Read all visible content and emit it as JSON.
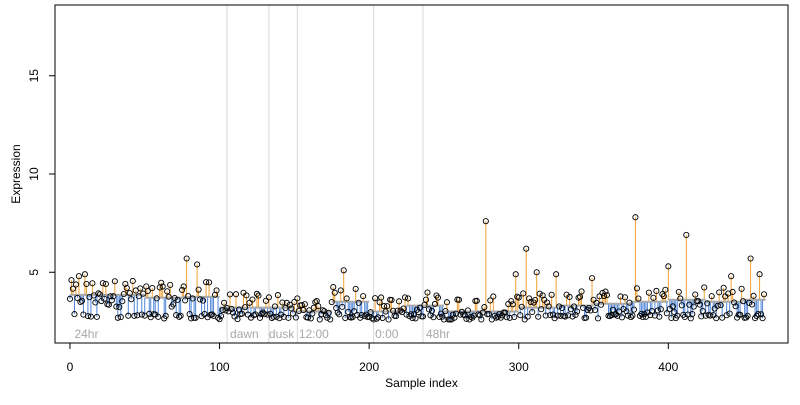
{
  "chart_data": {
    "type": "scatter",
    "xlabel": "Sample index",
    "ylabel": "Expression",
    "xlim": [
      -10,
      480
    ],
    "ylim": [
      1.4,
      18.6
    ],
    "x_ticks": [
      0,
      100,
      200,
      300,
      400
    ],
    "y_ticks": [
      5,
      10,
      15
    ],
    "grid": false,
    "colors": {
      "above_baseline": "#f0a030",
      "below_baseline": "#4f86d8",
      "baseline": "#a8a8a8",
      "separator": "#d8d8d8",
      "annotation": "#a8a8a8",
      "point_stroke": "#000000"
    },
    "separators": [
      105,
      133,
      152,
      203,
      236
    ],
    "region_labels": [
      {
        "x": 3,
        "text": "24hr"
      },
      {
        "x": 107,
        "text": "dawn"
      },
      {
        "x": 133,
        "text": "dusk"
      },
      {
        "x": 153,
        "text": "12:00"
      },
      {
        "x": 204,
        "text": "0:00"
      },
      {
        "x": 238,
        "text": "48hr"
      }
    ],
    "baseline_segments": [
      {
        "x0": 0,
        "x1": 50,
        "y": 3.85
      },
      {
        "x0": 50,
        "x1": 75,
        "y": 3.7
      },
      {
        "x0": 75,
        "x1": 100,
        "y": 3.75
      },
      {
        "x0": 100,
        "x1": 150,
        "y": 3.2
      },
      {
        "x0": 150,
        "x1": 175,
        "y": 3.0
      },
      {
        "x0": 175,
        "x1": 200,
        "y": 3.5
      },
      {
        "x0": 200,
        "x1": 225,
        "y": 3.0
      },
      {
        "x0": 225,
        "x1": 250,
        "y": 3.3
      },
      {
        "x0": 250,
        "x1": 300,
        "y": 3.0
      },
      {
        "x0": 300,
        "x1": 325,
        "y": 3.2
      },
      {
        "x0": 325,
        "x1": 350,
        "y": 3.3
      },
      {
        "x0": 350,
        "x1": 375,
        "y": 3.4
      },
      {
        "x0": 375,
        "x1": 400,
        "y": 3.5
      },
      {
        "x0": 400,
        "x1": 425,
        "y": 3.6
      },
      {
        "x0": 425,
        "x1": 450,
        "y": 3.5
      },
      {
        "x0": 450,
        "x1": 465,
        "y": 3.6
      }
    ],
    "highlight_points": [
      {
        "x": 6,
        "y": 4.8
      },
      {
        "x": 10,
        "y": 4.9
      },
      {
        "x": 78,
        "y": 5.7
      },
      {
        "x": 85,
        "y": 5.4
      },
      {
        "x": 183,
        "y": 5.1
      },
      {
        "x": 278,
        "y": 7.6
      },
      {
        "x": 298,
        "y": 4.9
      },
      {
        "x": 305,
        "y": 6.2
      },
      {
        "x": 312,
        "y": 5.0
      },
      {
        "x": 325,
        "y": 4.9
      },
      {
        "x": 349,
        "y": 4.7
      },
      {
        "x": 378,
        "y": 7.8
      },
      {
        "x": 400,
        "y": 5.3
      },
      {
        "x": 412,
        "y": 6.9
      },
      {
        "x": 442,
        "y": 4.8
      },
      {
        "x": 455,
        "y": 5.7
      },
      {
        "x": 461,
        "y": 4.9
      }
    ],
    "n_points": 465,
    "noise_range": [
      2.6,
      4.6
    ]
  }
}
